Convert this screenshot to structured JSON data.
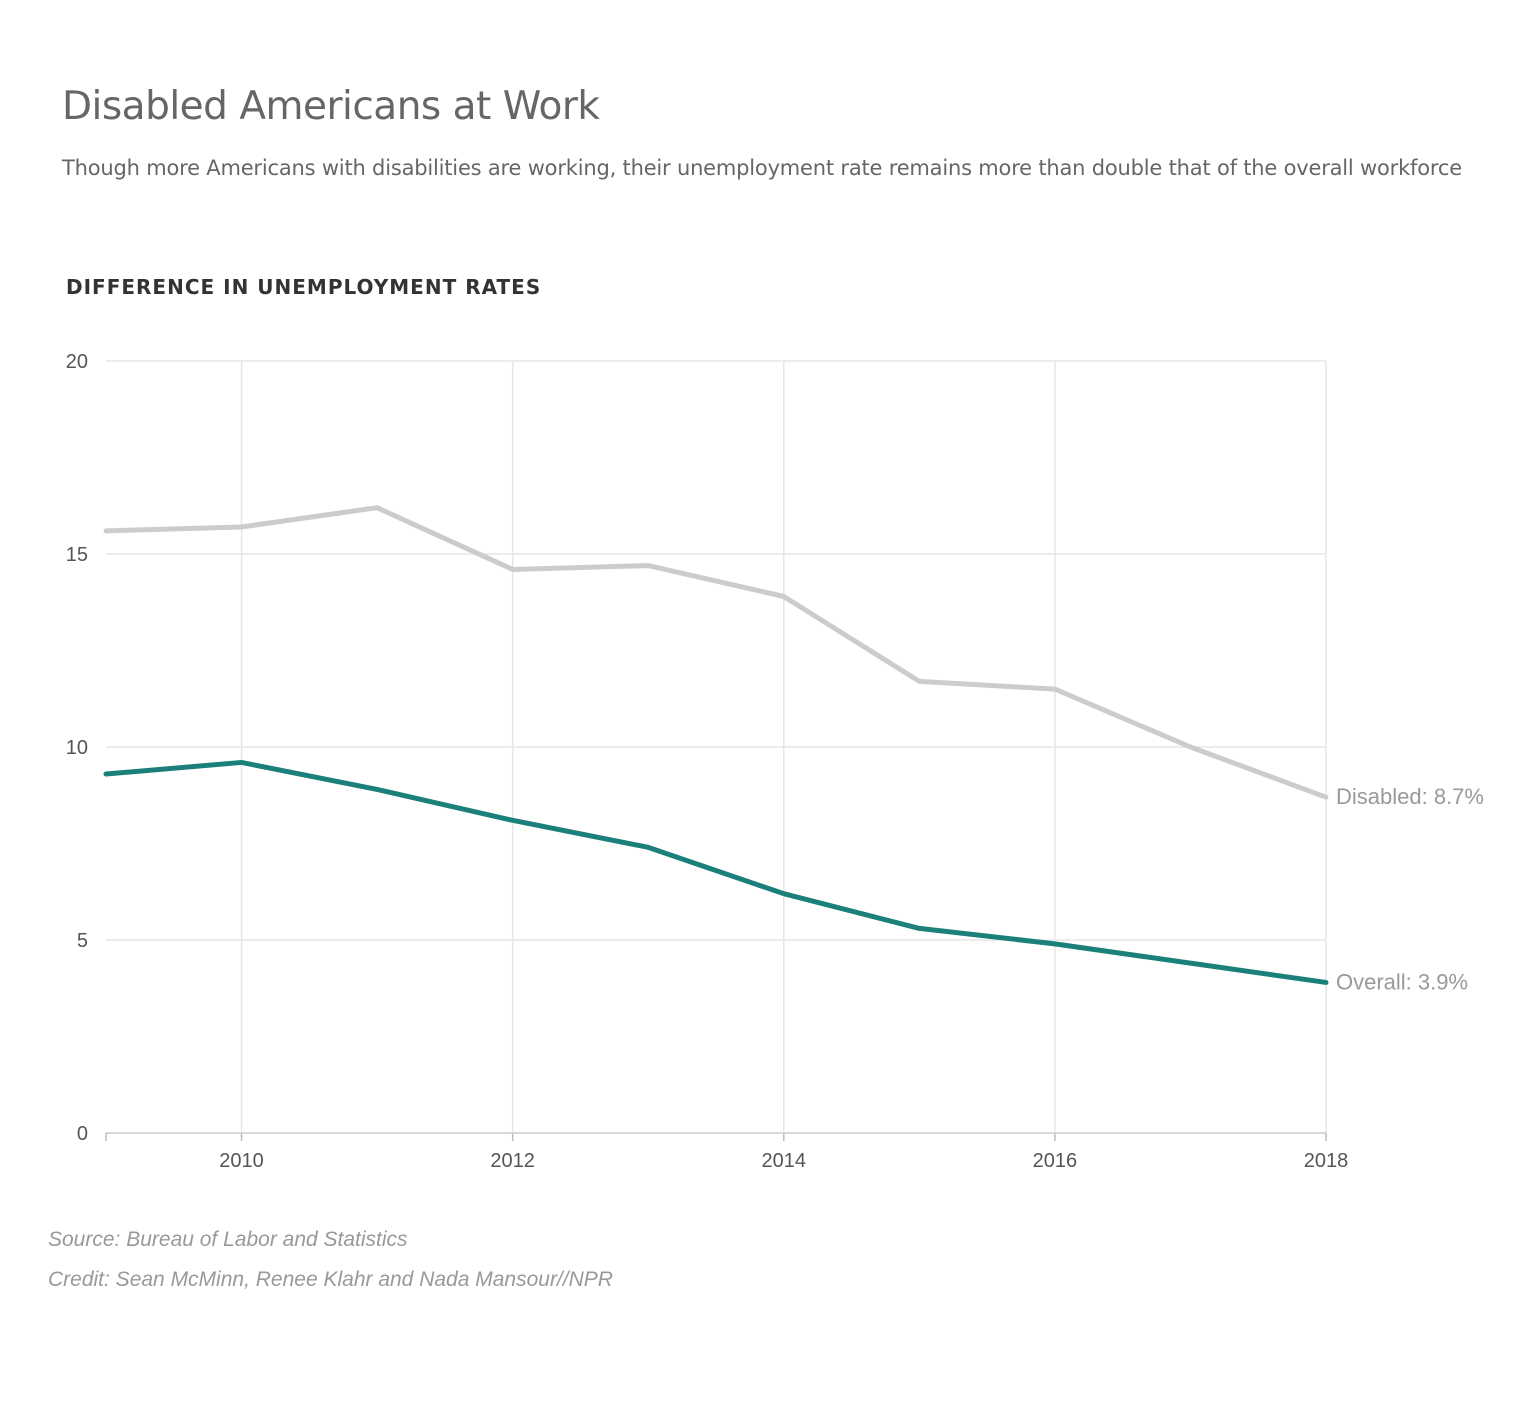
{
  "header": {
    "title": "Disabled Americans at Work",
    "subtitle": "Though more Americans with disabilities are working, their unemployment rate remains more than double that of the overall workforce"
  },
  "footer": {
    "source": "Source: Bureau of Labor and Statistics",
    "credit": "Credit: Sean McMinn, Renee Klahr and Nada Mansour//NPR"
  },
  "chart_data": {
    "type": "line",
    "title": "DIFFERENCE IN UNEMPLOYMENT RATES",
    "xlabel": "",
    "ylabel": "",
    "x": [
      2009,
      2010,
      2011,
      2012,
      2013,
      2014,
      2015,
      2016,
      2017,
      2018
    ],
    "xlim": [
      2009,
      2018
    ],
    "ylim": [
      0,
      20
    ],
    "x_ticks": [
      "2010",
      "2012",
      "2014",
      "2016",
      "2018"
    ],
    "y_ticks": [
      "0",
      "5",
      "10",
      "15",
      "20"
    ],
    "grid": true,
    "series": [
      {
        "name": "Disabled",
        "end_label": "Disabled: 8.7%",
        "color": "#cccccc",
        "values": [
          15.6,
          15.7,
          16.2,
          14.6,
          14.7,
          13.9,
          11.7,
          11.5,
          10.0,
          8.7
        ]
      },
      {
        "name": "Overall",
        "end_label": "Overall: 3.9%",
        "color": "#1b7f7a",
        "values": [
          9.3,
          9.6,
          8.9,
          8.1,
          7.4,
          6.2,
          5.3,
          4.9,
          4.4,
          3.9
        ]
      }
    ]
  }
}
